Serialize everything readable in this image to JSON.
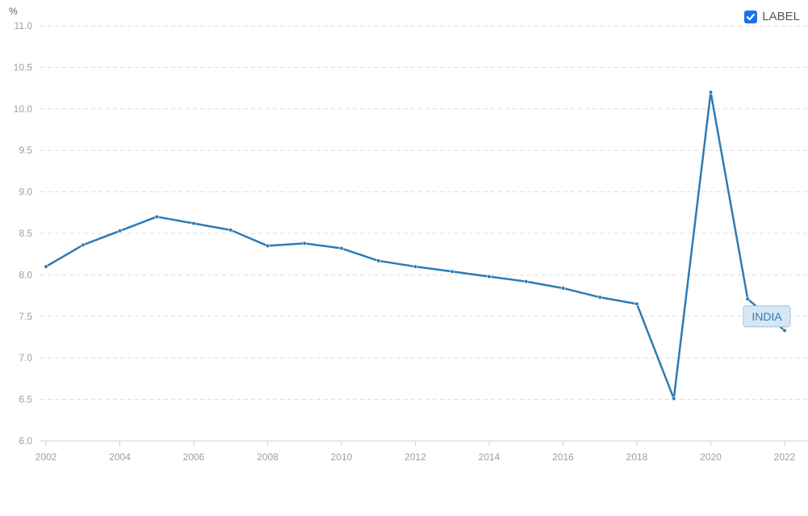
{
  "legend": {
    "label": "LABEL",
    "checked": true,
    "icon": "checkbox-checked-icon"
  },
  "colors": {
    "series": "#2e7bb4",
    "grid": "#dcdcdc",
    "axis": "#d0d0d0",
    "label_bg": "#d7e6f3",
    "label_border": "#9cc0df",
    "checkbox": "#1a73e8"
  },
  "chart_data": {
    "type": "line",
    "unit_label": "%",
    "xlim": [
      2002,
      2022
    ],
    "ylim": [
      6.0,
      11.0
    ],
    "x_ticks": [
      "2002",
      "2004",
      "2006",
      "2008",
      "2010",
      "2012",
      "2014",
      "2016",
      "2018",
      "2020",
      "2022"
    ],
    "y_ticks": [
      "6.0",
      "6.5",
      "7.0",
      "7.5",
      "8.0",
      "8.5",
      "9.0",
      "9.5",
      "10.0",
      "10.5",
      "11.0"
    ],
    "grid": true,
    "series": [
      {
        "name": "INDIA",
        "x": [
          2002,
          2003,
          2004,
          2005,
          2006,
          2007,
          2008,
          2009,
          2010,
          2011,
          2012,
          2013,
          2014,
          2015,
          2016,
          2017,
          2018,
          2019,
          2020,
          2021,
          2022
        ],
        "values": [
          8.1,
          8.36,
          8.53,
          8.7,
          8.62,
          8.54,
          8.35,
          8.38,
          8.32,
          8.17,
          8.1,
          8.04,
          7.98,
          7.92,
          7.84,
          7.73,
          7.65,
          6.51,
          10.2,
          7.71,
          7.33
        ]
      }
    ]
  }
}
